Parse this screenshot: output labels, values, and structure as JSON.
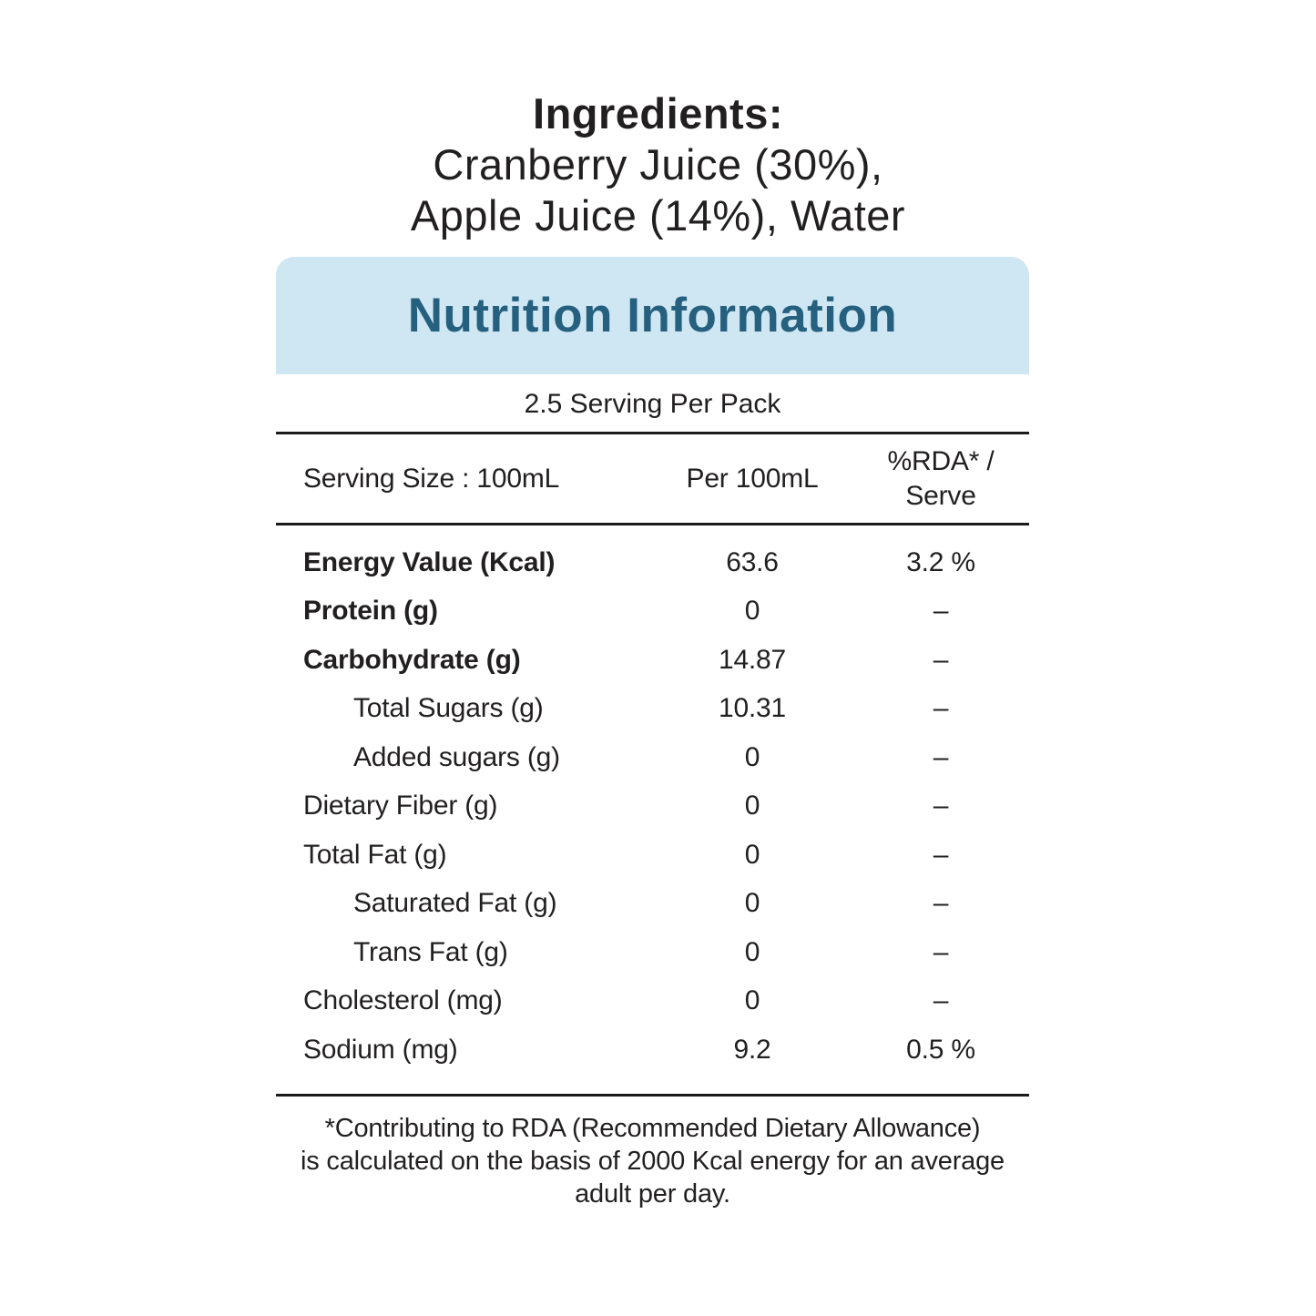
{
  "ingredients": {
    "title": "Ingredients:",
    "line1": "Cranberry Juice (30%),",
    "line2": "Apple Juice (14%), Water"
  },
  "nutrition": {
    "banner_title": "Nutrition Information",
    "servings_per_pack": "2.5 Serving Per Pack",
    "columns": {
      "serving_size": "Serving Size : 100mL",
      "per_100ml": "Per 100mL",
      "rda_line1": "%RDA* /",
      "rda_line2": "Serve"
    },
    "rows": [
      {
        "label": "Energy Value (Kcal)",
        "per_100ml": "63.6",
        "rda": "3.2 %",
        "bold": true,
        "indent": false
      },
      {
        "label": "Protein (g)",
        "per_100ml": "0",
        "rda": "–",
        "bold": true,
        "indent": false
      },
      {
        "label": "Carbohydrate (g)",
        "per_100ml": "14.87",
        "rda": "–",
        "bold": true,
        "indent": false
      },
      {
        "label": "Total Sugars (g)",
        "per_100ml": "10.31",
        "rda": "–",
        "bold": false,
        "indent": true
      },
      {
        "label": "Added sugars (g)",
        "per_100ml": "0",
        "rda": "–",
        "bold": false,
        "indent": true
      },
      {
        "label": "Dietary Fiber (g)",
        "per_100ml": "0",
        "rda": "–",
        "bold": false,
        "indent": false
      },
      {
        "label": "Total Fat (g)",
        "per_100ml": "0",
        "rda": "–",
        "bold": false,
        "indent": false
      },
      {
        "label": "Saturated Fat (g)",
        "per_100ml": "0",
        "rda": "–",
        "bold": false,
        "indent": true
      },
      {
        "label": "Trans Fat (g)",
        "per_100ml": "0",
        "rda": "–",
        "bold": false,
        "indent": true
      },
      {
        "label": "Cholesterol (mg)",
        "per_100ml": "0",
        "rda": "–",
        "bold": false,
        "indent": false
      },
      {
        "label": "Sodium (mg)",
        "per_100ml": "9.2",
        "rda": "0.5 %",
        "bold": false,
        "indent": false
      }
    ],
    "footnote_line1": "*Contributing to RDA (Recommended Dietary Allowance)",
    "footnote_line2": "is calculated on the basis of 2000 Kcal energy for an average",
    "footnote_line3": "adult per day."
  },
  "colors": {
    "banner_bg": "#cfe6f3",
    "banner_text": "#26607f",
    "text": "#221f20",
    "rule": "#1b1b1b"
  }
}
